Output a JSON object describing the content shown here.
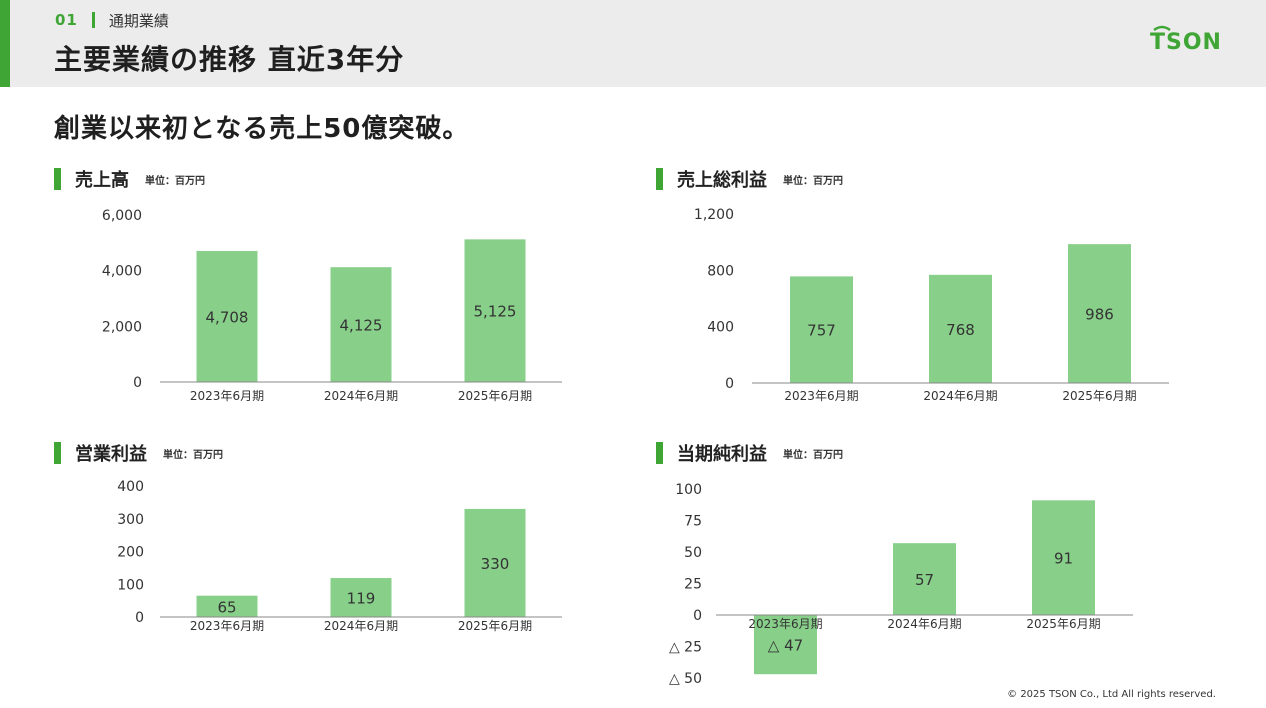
{
  "header": {
    "section_number": "01",
    "section_name": "通期業績",
    "title": "主要業績の推移 直近3年分",
    "logo_text": "TSON"
  },
  "headline": "創業以来初となる売上50億突破。",
  "footer": "© 2025 TSON Co., Ltd All rights reserved.",
  "colors": {
    "accent": "#3fa535",
    "bar": "#88d08a",
    "header_bg": "#ececec"
  },
  "charts": [
    {
      "id": "sales",
      "title": "売上高",
      "unit": "単位：百万円"
    },
    {
      "id": "gross",
      "title": "売上総利益",
      "unit": "単位：百万円"
    },
    {
      "id": "operating",
      "title": "営業利益",
      "unit": "単位：百万円"
    },
    {
      "id": "net",
      "title": "当期純利益",
      "unit": "単位：百万円"
    }
  ],
  "chart_data": [
    {
      "type": "bar",
      "title": "売上高",
      "categories": [
        "2023年6月期",
        "2024年6月期",
        "2025年6月期"
      ],
      "values": [
        4708,
        4125,
        5125
      ],
      "value_labels": [
        "4,708",
        "4,125",
        "5,125"
      ],
      "yticks": [
        0,
        2000,
        4000,
        6000
      ],
      "ytick_labels": [
        "0",
        "2,000",
        "4,000",
        "6,000"
      ],
      "ylim": [
        0,
        6000
      ],
      "grid": false
    },
    {
      "type": "bar",
      "title": "売上総利益",
      "categories": [
        "2023年6月期",
        "2024年6月期",
        "2025年6月期"
      ],
      "values": [
        757,
        768,
        986
      ],
      "value_labels": [
        "757",
        "768",
        "986"
      ],
      "yticks": [
        0,
        400,
        800,
        1200
      ],
      "ytick_labels": [
        "0",
        "400",
        "800",
        "1,200"
      ],
      "ylim": [
        0,
        1200
      ],
      "grid": false
    },
    {
      "type": "bar",
      "title": "営業利益",
      "categories": [
        "2023年6月期",
        "2024年6月期",
        "2025年6月期"
      ],
      "values": [
        65,
        119,
        330
      ],
      "value_labels": [
        "65",
        "119",
        "330"
      ],
      "yticks": [
        0,
        100,
        200,
        300,
        400
      ],
      "ytick_labels": [
        "0",
        "100",
        "200",
        "300",
        "400"
      ],
      "ylim": [
        0,
        400
      ],
      "grid": false
    },
    {
      "type": "bar",
      "title": "当期純利益",
      "categories": [
        "2023年6月期",
        "2024年6月期",
        "2025年6月期"
      ],
      "values": [
        -47,
        57,
        91
      ],
      "value_labels": [
        "△ 47",
        "57",
        "91"
      ],
      "yticks": [
        -50,
        -25,
        0,
        25,
        50,
        75,
        100
      ],
      "ytick_labels": [
        "△ 50",
        "△ 25",
        "0",
        "25",
        "50",
        "75",
        "100"
      ],
      "ylim": [
        -50,
        100
      ],
      "grid": false
    }
  ]
}
